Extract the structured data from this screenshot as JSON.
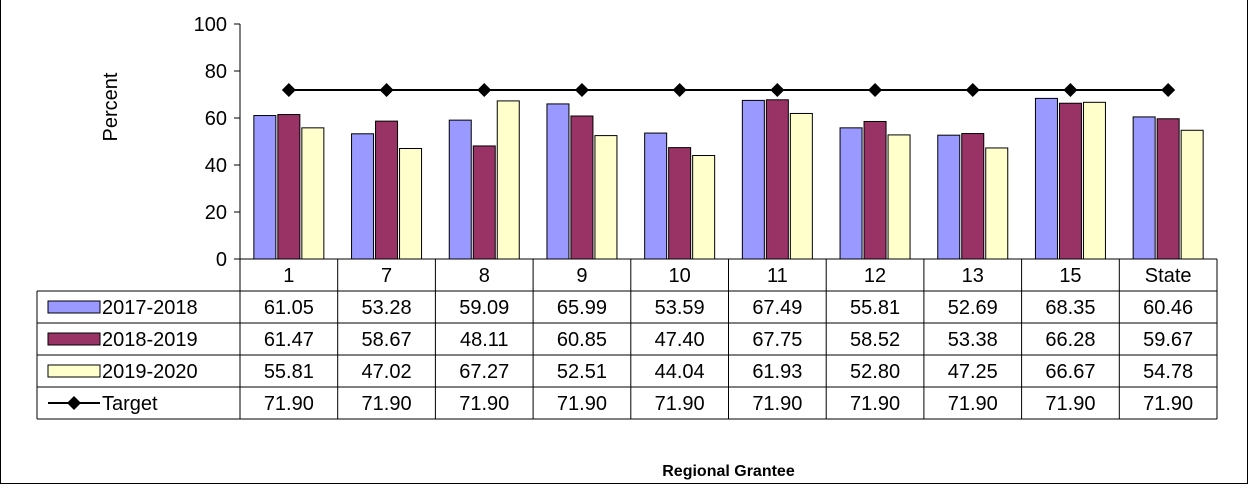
{
  "chart_data": {
    "type": "bar",
    "ylabel": "Percent",
    "xlabel": "Regional Grantee",
    "ylim": [
      0,
      100
    ],
    "yticks": [
      0,
      20,
      40,
      60,
      80,
      100
    ],
    "categories": [
      "1",
      "7",
      "8",
      "9",
      "10",
      "11",
      "12",
      "13",
      "15",
      "State"
    ],
    "series": [
      {
        "name": "2017-2018",
        "kind": "bar",
        "color": "#9999ff",
        "values": [
          61.05,
          53.28,
          59.09,
          65.99,
          53.59,
          67.49,
          55.81,
          52.69,
          68.35,
          60.46
        ],
        "labels": [
          "61.05",
          "53.28",
          "59.09",
          "65.99",
          "53.59",
          "67.49",
          "55.81",
          "52.69",
          "68.35",
          "60.46"
        ]
      },
      {
        "name": "2018-2019",
        "kind": "bar",
        "color": "#993366",
        "values": [
          61.47,
          58.67,
          48.11,
          60.85,
          47.4,
          67.75,
          58.52,
          53.38,
          66.28,
          59.67
        ],
        "labels": [
          "61.47",
          "58.67",
          "48.11",
          "60.85",
          "47.40",
          "67.75",
          "58.52",
          "53.38",
          "66.28",
          "59.67"
        ]
      },
      {
        "name": "2019-2020",
        "kind": "bar",
        "color": "#ffffcc",
        "values": [
          55.81,
          47.02,
          67.27,
          52.51,
          44.04,
          61.93,
          52.8,
          47.25,
          66.67,
          54.78
        ],
        "labels": [
          "55.81",
          "47.02",
          "67.27",
          "52.51",
          "44.04",
          "61.93",
          "52.80",
          "47.25",
          "66.67",
          "54.78"
        ]
      },
      {
        "name": "Target",
        "kind": "line",
        "color": "#000000",
        "values": [
          71.9,
          71.9,
          71.9,
          71.9,
          71.9,
          71.9,
          71.9,
          71.9,
          71.9,
          71.9
        ],
        "labels": [
          "71.90",
          "71.90",
          "71.90",
          "71.90",
          "71.90",
          "71.90",
          "71.90",
          "71.90",
          "71.90",
          "71.90"
        ]
      }
    ]
  }
}
